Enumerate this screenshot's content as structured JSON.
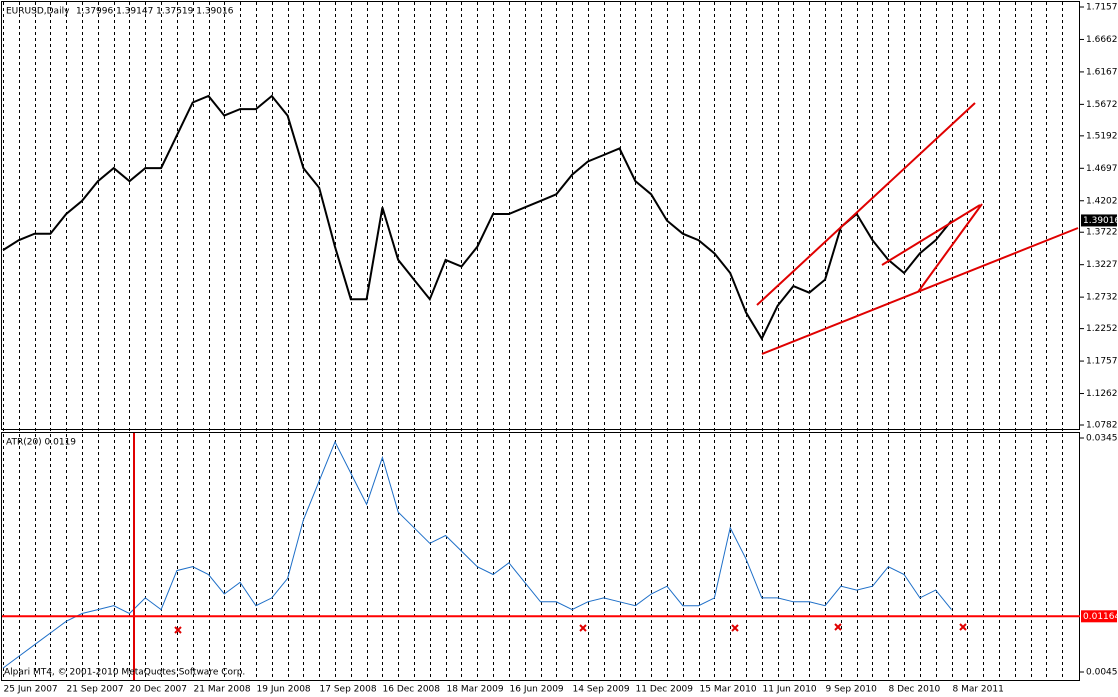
{
  "chart_data": [
    {
      "type": "line",
      "title": "EURUSD,Daily",
      "subtitle": "1.37996 1.39147 1.37519 1.39016",
      "color": "#000000",
      "categories": [
        "25 Jun 2007",
        null,
        null,
        null,
        "21 Sep 2007",
        null,
        null,
        null,
        "20 Dec 2007",
        null,
        null,
        null,
        "21 Mar 2008",
        null,
        null,
        null,
        "19 Jun 2008",
        null,
        null,
        null,
        "17 Sep 2008",
        null,
        null,
        null,
        "16 Dec 2008",
        null,
        null,
        null,
        "18 Mar 2009",
        null,
        null,
        null,
        "16 Jun 2009",
        null,
        null,
        null,
        "14 Sep 2009",
        null,
        null,
        null,
        "11 Dec 2009",
        null,
        null,
        null,
        "15 Mar 2010",
        null,
        null,
        null,
        "11 Jun 2010",
        null,
        null,
        null,
        "9 Sep 2010",
        null,
        null,
        null,
        "8 Dec 2010",
        null,
        null,
        null,
        "8 Mar 2011",
        null,
        null,
        null,
        null,
        null,
        null,
        null
      ],
      "values": [
        1.345,
        1.36,
        1.37,
        1.37,
        1.4,
        1.42,
        1.45,
        1.47,
        1.45,
        1.47,
        1.47,
        1.52,
        1.57,
        1.58,
        1.55,
        1.56,
        1.56,
        1.58,
        1.55,
        1.47,
        1.44,
        1.35,
        1.27,
        1.27,
        1.41,
        1.33,
        1.3,
        1.27,
        1.33,
        1.32,
        1.35,
        1.4,
        1.4,
        1.41,
        1.42,
        1.43,
        1.46,
        1.48,
        1.49,
        1.5,
        1.45,
        1.43,
        1.39,
        1.37,
        1.36,
        1.34,
        1.31,
        1.25,
        1.21,
        1.26,
        1.29,
        1.28,
        1.3,
        1.38,
        1.4,
        1.36,
        1.33,
        1.31,
        1.34,
        1.36,
        1.39,
        null,
        null,
        null,
        null,
        null,
        null,
        null
      ],
      "ylim": [
        1.0782,
        1.7157
      ],
      "yticks": [
        {
          "value": 1.7157,
          "label": "1.71570"
        },
        {
          "value": 1.6662,
          "label": "1.66620"
        },
        {
          "value": 1.6167,
          "label": "1.61670"
        },
        {
          "value": 1.5672,
          "label": "1.56720"
        },
        {
          "value": 1.5192,
          "label": "1.51920"
        },
        {
          "value": 1.4697,
          "label": "1.46970"
        },
        {
          "value": 1.4202,
          "label": "1.42020"
        },
        {
          "value": 1.3722,
          "label": "1.37220"
        },
        {
          "value": 1.3227,
          "label": "1.32270"
        },
        {
          "value": 1.2732,
          "label": "1.27320"
        },
        {
          "value": 1.2252,
          "label": "1.22520"
        },
        {
          "value": 1.1757,
          "label": "1.17570"
        },
        {
          "value": 1.1262,
          "label": "1.12620"
        },
        {
          "value": 1.0782,
          "label": "1.07820"
        }
      ],
      "current_price": 1.39016,
      "grid": true
    },
    {
      "type": "line",
      "title": "ATR(20) 0.0119",
      "color": "#1e6fc8",
      "values": [
        0.005,
        0.0065,
        0.008,
        0.0095,
        0.011,
        0.012,
        0.0125,
        0.013,
        0.012,
        0.014,
        0.0125,
        0.0175,
        0.018,
        0.017,
        0.0145,
        0.016,
        0.013,
        0.014,
        0.0165,
        0.024,
        0.029,
        0.034,
        0.03,
        0.026,
        0.032,
        0.025,
        0.023,
        0.021,
        0.022,
        0.02,
        0.018,
        0.017,
        0.0185,
        0.016,
        0.0135,
        0.0135,
        0.0125,
        0.0135,
        0.014,
        0.0135,
        0.013,
        0.0145,
        0.0155,
        0.013,
        0.013,
        0.014,
        0.023,
        0.019,
        0.014,
        0.014,
        0.0135,
        0.0135,
        0.013,
        0.0155,
        0.015,
        0.0155,
        0.018,
        0.017,
        0.014,
        0.015,
        0.0125,
        null,
        null,
        null,
        null,
        null,
        null,
        null
      ],
      "ylim": [
        0.0045,
        0.0345
      ],
      "yticks": [
        0.0345,
        0.0045
      ],
      "level": 0.01164,
      "level_color": "#ff0000",
      "annotation": "Alpari MT4, © 2001-2010 MetaQuotes Software Corp."
    }
  ]
}
